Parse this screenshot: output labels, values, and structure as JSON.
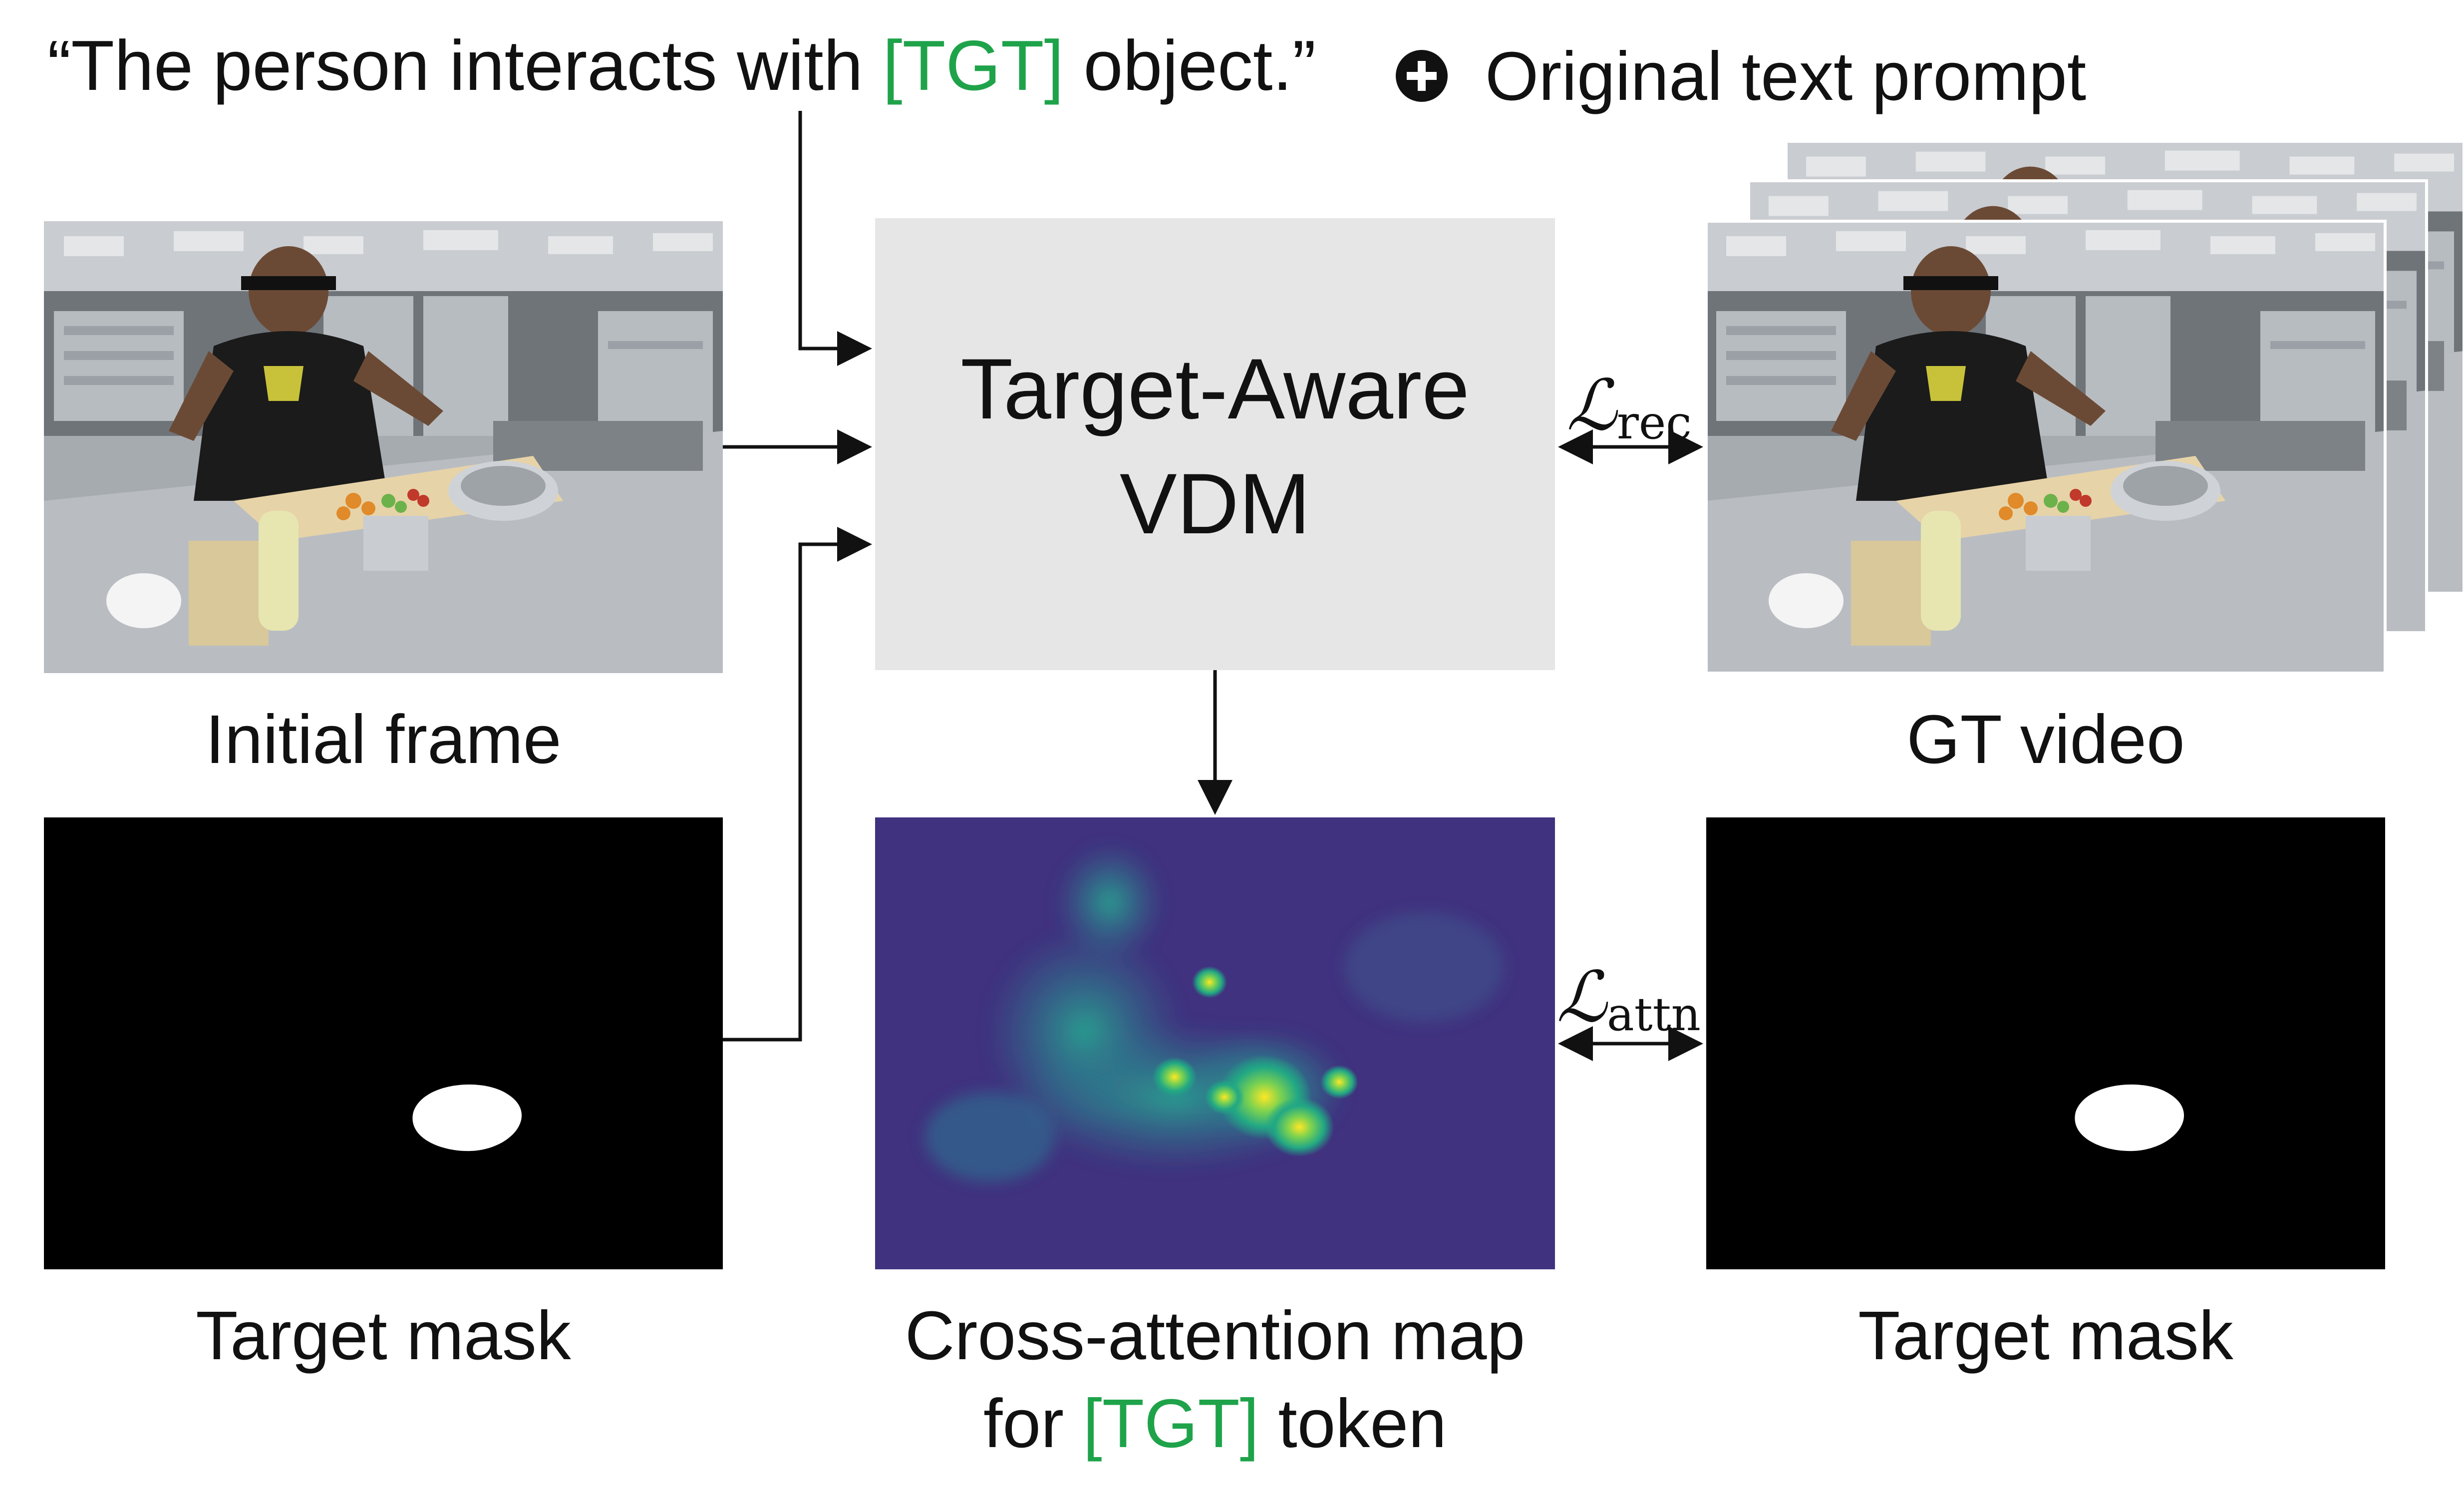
{
  "prompt": {
    "before": "“The person interacts with ",
    "token": "[TGT]",
    "after": " object.”",
    "plus_icon": "plus-circle-icon",
    "original": "Original text prompt"
  },
  "model": {
    "line1": "Target-Aware",
    "line2": "VDM"
  },
  "labels": {
    "initial_frame": "Initial frame",
    "target_mask_left": "Target mask",
    "gt_video": "GT video",
    "target_mask_right": "Target mask",
    "attn_line1": "Cross-attention map",
    "attn_line2_before": "for ",
    "attn_line2_token": "[TGT]",
    "attn_line2_after": " token"
  },
  "losses": {
    "rec_symbol": "ℒ",
    "rec_sub": "rec",
    "attn_symbol": "ℒ",
    "attn_sub": "attn"
  },
  "colors": {
    "token": "#1fa34a",
    "model_box": "#e6e6e6",
    "arrow": "#111111"
  }
}
